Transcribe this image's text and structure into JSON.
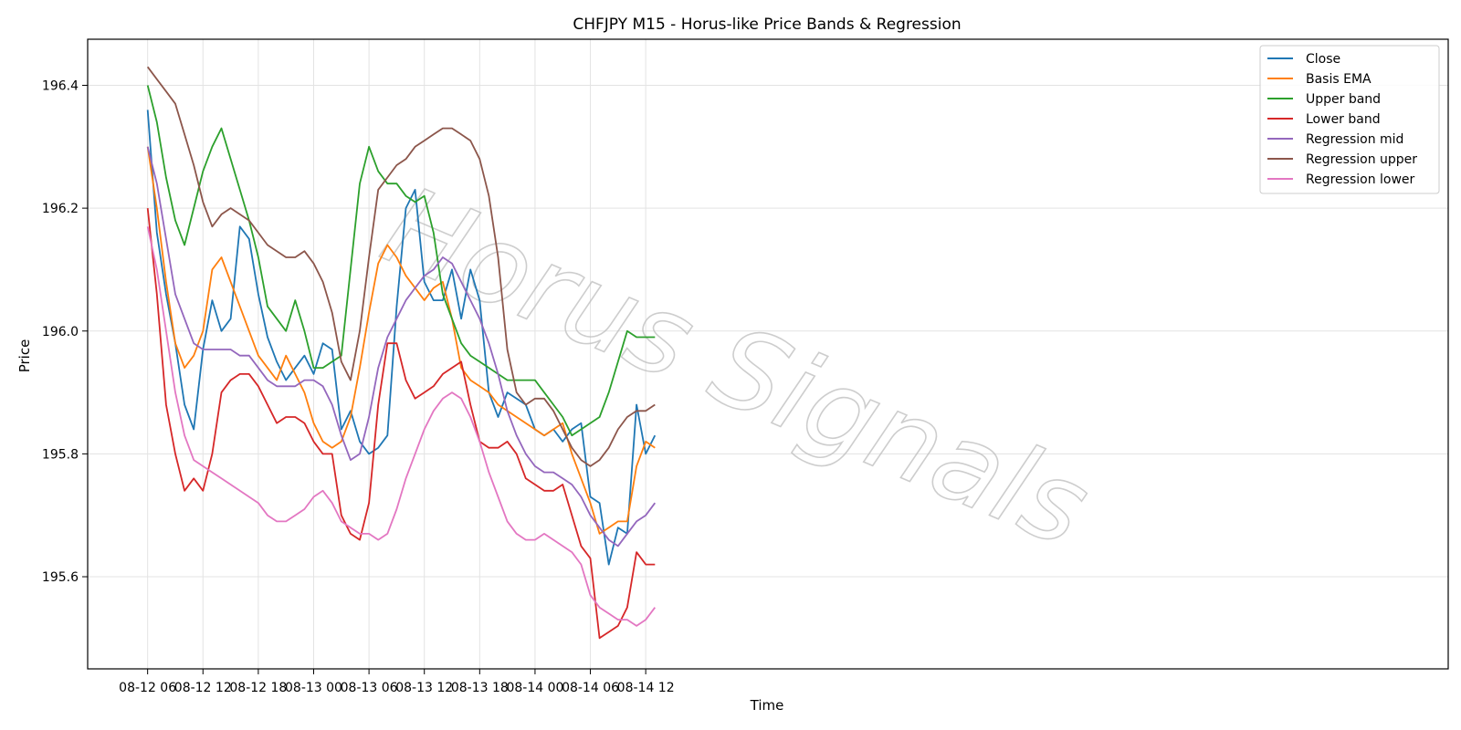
{
  "chart_data": {
    "type": "line",
    "title": "CHFJPY M15 - Horus-like Price Bands & Regression",
    "xlabel": "Time",
    "ylabel": "Price",
    "xlim": [
      -6.5,
      141
    ],
    "ylim": [
      195.45,
      196.475
    ],
    "x_tick_labels": [
      "08-12 06",
      "08-12 12",
      "08-12 18",
      "08-13 00",
      "08-13 06",
      "08-13 12",
      "08-13 18",
      "08-14 00",
      "08-14 06",
      "08-14 12"
    ],
    "x_tick_positions_hours": [
      0,
      6,
      12,
      18,
      24,
      30,
      36,
      42,
      48,
      54
    ],
    "y_ticks": [
      195.6,
      195.8,
      196.0,
      196.2,
      196.4
    ],
    "y_tick_labels": [
      "195.6",
      "195.8",
      "196.0",
      "196.2",
      "196.4"
    ],
    "grid": true,
    "legend_position": "top-right",
    "watermark": "Horus Signals",
    "x_hours": [
      0,
      1,
      2,
      3,
      4,
      5,
      6,
      7,
      8,
      9,
      10,
      11,
      12,
      13,
      14,
      15,
      16,
      17,
      18,
      19,
      20,
      21,
      22,
      23,
      24,
      25,
      26,
      27,
      28,
      29,
      30,
      31,
      32,
      33,
      34,
      35,
      36,
      37,
      38,
      39,
      40,
      41,
      42,
      43,
      44,
      45,
      46,
      47,
      48,
      49,
      50,
      51,
      52,
      53,
      54,
      55
    ],
    "series": [
      {
        "name": "Close",
        "color": "#1f77b4",
        "values": [
          196.36,
          196.16,
          196.06,
          195.98,
          195.88,
          195.84,
          195.97,
          196.05,
          196.0,
          196.02,
          196.17,
          196.15,
          196.06,
          195.99,
          195.95,
          195.92,
          195.94,
          195.96,
          195.93,
          195.98,
          195.97,
          195.84,
          195.87,
          195.82,
          195.8,
          195.81,
          195.83,
          196.04,
          196.2,
          196.23,
          196.08,
          196.05,
          196.05,
          196.1,
          196.02,
          196.1,
          196.05,
          195.9,
          195.86,
          195.9,
          195.89,
          195.88,
          195.84,
          195.83,
          195.84,
          195.82,
          195.84,
          195.85,
          195.73,
          195.72,
          195.62,
          195.68,
          195.67,
          195.88,
          195.8,
          195.83
        ]
      },
      {
        "name": "Basis EMA",
        "color": "#ff7f0e",
        "values": [
          196.3,
          196.2,
          196.08,
          195.98,
          195.94,
          195.96,
          196.0,
          196.1,
          196.12,
          196.08,
          196.04,
          196.0,
          195.96,
          195.94,
          195.92,
          195.96,
          195.93,
          195.9,
          195.85,
          195.82,
          195.81,
          195.82,
          195.86,
          195.94,
          196.03,
          196.11,
          196.14,
          196.12,
          196.09,
          196.07,
          196.05,
          196.07,
          196.08,
          196.02,
          195.94,
          195.92,
          195.91,
          195.9,
          195.88,
          195.87,
          195.86,
          195.85,
          195.84,
          195.83,
          195.84,
          195.85,
          195.8,
          195.76,
          195.72,
          195.67,
          195.68,
          195.69,
          195.69,
          195.78,
          195.82,
          195.81
        ]
      },
      {
        "name": "Upper band",
        "color": "#2ca02c",
        "values": [
          196.4,
          196.34,
          196.25,
          196.18,
          196.14,
          196.2,
          196.26,
          196.3,
          196.33,
          196.28,
          196.23,
          196.18,
          196.12,
          196.04,
          196.02,
          196.0,
          196.05,
          196.0,
          195.94,
          195.94,
          195.95,
          195.96,
          196.1,
          196.24,
          196.3,
          196.26,
          196.24,
          196.24,
          196.22,
          196.21,
          196.22,
          196.16,
          196.06,
          196.02,
          195.98,
          195.96,
          195.95,
          195.94,
          195.93,
          195.92,
          195.92,
          195.92,
          195.92,
          195.9,
          195.88,
          195.86,
          195.83,
          195.84,
          195.85,
          195.86,
          195.9,
          195.95,
          196.0,
          195.99,
          195.99,
          195.99
        ]
      },
      {
        "name": "Lower band",
        "color": "#d62728",
        "values": [
          196.2,
          196.06,
          195.88,
          195.8,
          195.74,
          195.76,
          195.74,
          195.8,
          195.9,
          195.92,
          195.93,
          195.93,
          195.91,
          195.88,
          195.85,
          195.86,
          195.86,
          195.85,
          195.82,
          195.8,
          195.8,
          195.7,
          195.67,
          195.66,
          195.72,
          195.88,
          195.98,
          195.98,
          195.92,
          195.89,
          195.9,
          195.91,
          195.93,
          195.94,
          195.95,
          195.88,
          195.82,
          195.81,
          195.81,
          195.82,
          195.8,
          195.76,
          195.75,
          195.74,
          195.74,
          195.75,
          195.7,
          195.65,
          195.63,
          195.5,
          195.51,
          195.52,
          195.55,
          195.64,
          195.62,
          195.62
        ]
      },
      {
        "name": "Regression mid",
        "color": "#9467bd",
        "values": [
          196.3,
          196.24,
          196.15,
          196.06,
          196.02,
          195.98,
          195.97,
          195.97,
          195.97,
          195.97,
          195.96,
          195.96,
          195.94,
          195.92,
          195.91,
          195.91,
          195.91,
          195.92,
          195.92,
          195.91,
          195.88,
          195.83,
          195.79,
          195.8,
          195.86,
          195.94,
          195.99,
          196.02,
          196.05,
          196.07,
          196.09,
          196.1,
          196.12,
          196.11,
          196.08,
          196.05,
          196.02,
          195.98,
          195.93,
          195.87,
          195.83,
          195.8,
          195.78,
          195.77,
          195.77,
          195.76,
          195.75,
          195.73,
          195.7,
          195.68,
          195.66,
          195.65,
          195.67,
          195.69,
          195.7,
          195.72
        ]
      },
      {
        "name": "Regression upper",
        "color": "#8c564b",
        "values": [
          196.43,
          196.41,
          196.39,
          196.37,
          196.32,
          196.27,
          196.21,
          196.17,
          196.19,
          196.2,
          196.19,
          196.18,
          196.16,
          196.14,
          196.13,
          196.12,
          196.12,
          196.13,
          196.11,
          196.08,
          196.03,
          195.95,
          195.92,
          196.0,
          196.12,
          196.23,
          196.25,
          196.27,
          196.28,
          196.3,
          196.31,
          196.32,
          196.33,
          196.33,
          196.32,
          196.31,
          196.28,
          196.22,
          196.12,
          195.97,
          195.9,
          195.88,
          195.89,
          195.89,
          195.87,
          195.84,
          195.81,
          195.79,
          195.78,
          195.79,
          195.81,
          195.84,
          195.86,
          195.87,
          195.87,
          195.88
        ]
      },
      {
        "name": "Regression lower",
        "color": "#e377c2",
        "values": [
          196.17,
          196.1,
          196.0,
          195.9,
          195.83,
          195.79,
          195.78,
          195.77,
          195.76,
          195.75,
          195.74,
          195.73,
          195.72,
          195.7,
          195.69,
          195.69,
          195.7,
          195.71,
          195.73,
          195.74,
          195.72,
          195.69,
          195.68,
          195.67,
          195.67,
          195.66,
          195.67,
          195.71,
          195.76,
          195.8,
          195.84,
          195.87,
          195.89,
          195.9,
          195.89,
          195.86,
          195.82,
          195.77,
          195.73,
          195.69,
          195.67,
          195.66,
          195.66,
          195.67,
          195.66,
          195.65,
          195.64,
          195.62,
          195.57,
          195.55,
          195.54,
          195.53,
          195.53,
          195.52,
          195.53,
          195.55
        ]
      }
    ]
  }
}
